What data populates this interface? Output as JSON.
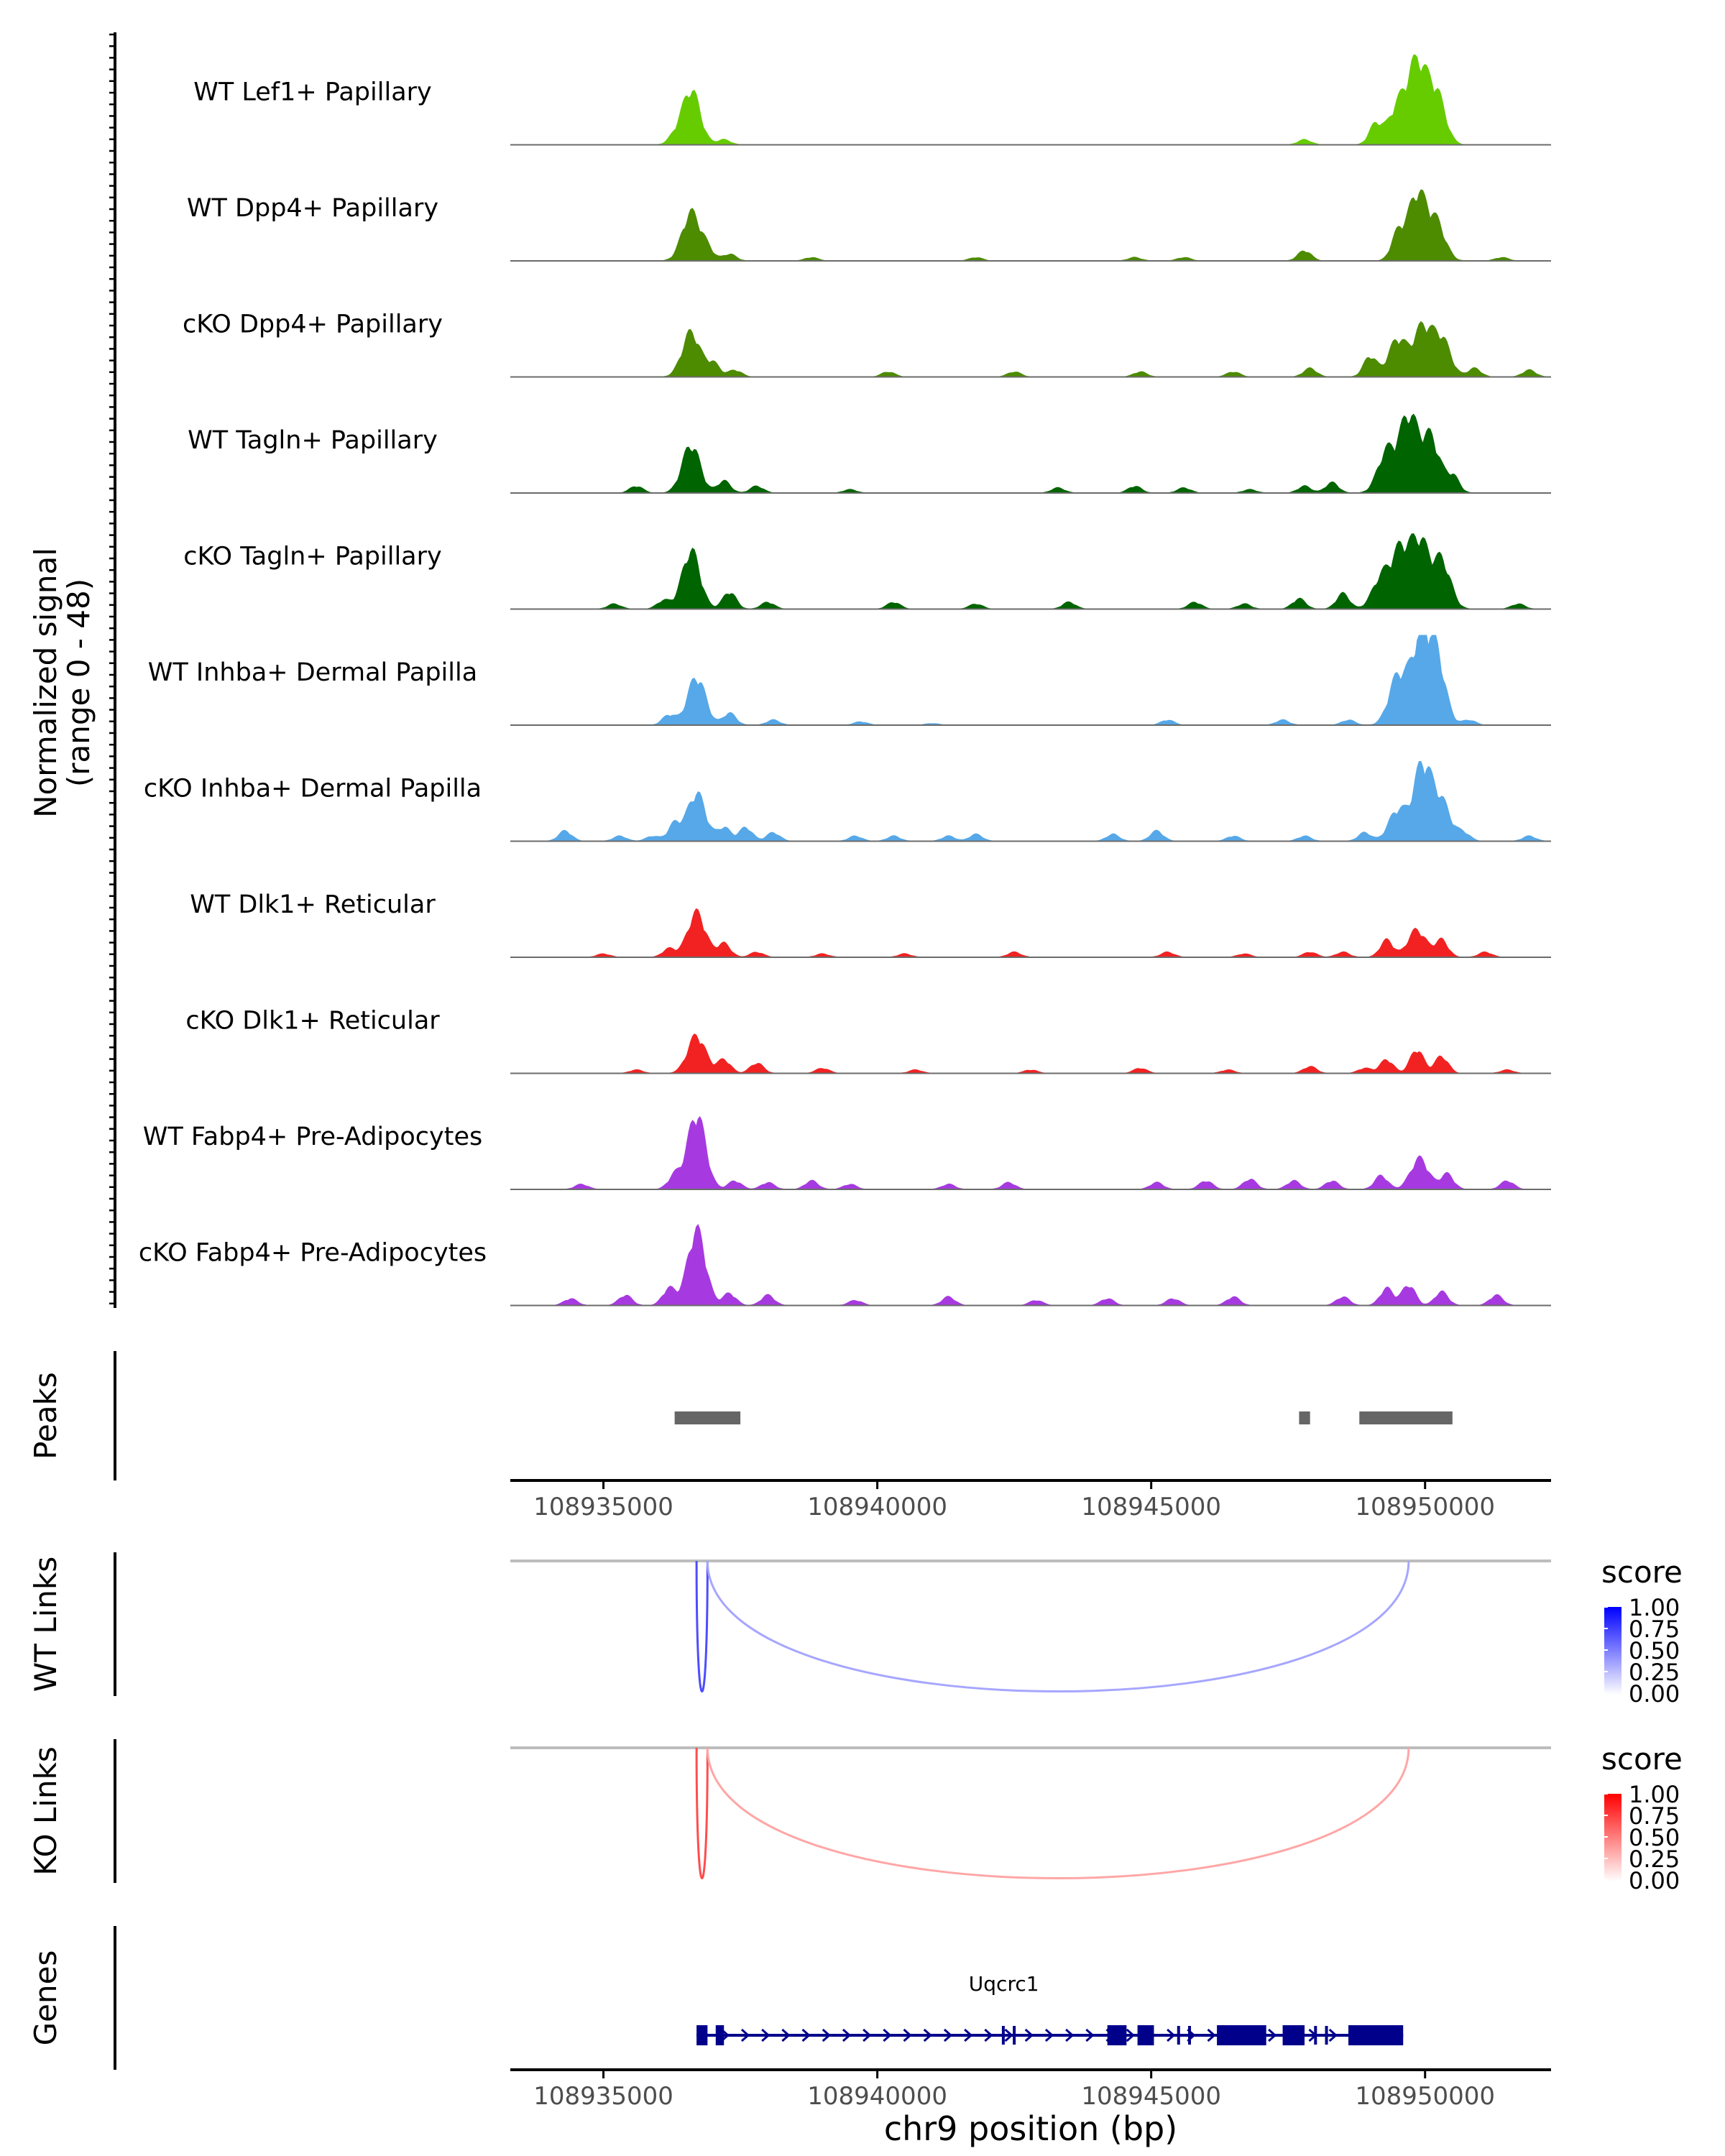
{
  "chart_data": {
    "type": "area",
    "region": {
      "chromosome": "chr9",
      "start": 108933300,
      "end": 108952300
    },
    "xlabel": "chr9 position (bp)",
    "x_ticks": [
      108935000,
      108940000,
      108945000,
      108950000
    ],
    "x_tick_labels": [
      "108935000",
      "108940000",
      "108945000",
      "108950000"
    ],
    "coverage": {
      "ylabel_line1": "Normalized signal",
      "ylabel_line2": "(range 0 - 48)",
      "ylim": [
        0,
        48
      ],
      "tracks": [
        {
          "name": "WT Lef1+ Papillary",
          "color": "#66CC00",
          "peaks": [
            [
              108936600,
              32
            ],
            [
              108936300,
              4
            ],
            [
              108937200,
              3
            ],
            [
              108947800,
              3
            ],
            [
              108949500,
              22
            ],
            [
              108949850,
              46
            ],
            [
              108950200,
              30
            ],
            [
              108949100,
              12
            ]
          ]
        },
        {
          "name": "WT Dpp4+ Papillary",
          "color": "#4D8B00",
          "peaks": [
            [
              108936600,
              28
            ],
            [
              108936900,
              6
            ],
            [
              108937300,
              4
            ],
            [
              108938800,
              2
            ],
            [
              108941800,
              2
            ],
            [
              108944700,
              2
            ],
            [
              108945600,
              2
            ],
            [
              108947800,
              6
            ],
            [
              108949500,
              15
            ],
            [
              108949850,
              38
            ],
            [
              108950200,
              22
            ],
            [
              108951400,
              2
            ]
          ]
        },
        {
          "name": "cKO Dpp4+ Papillary",
          "color": "#4D8B00",
          "peaks": [
            [
              108936600,
              26
            ],
            [
              108937000,
              8
            ],
            [
              108937400,
              4
            ],
            [
              108940200,
              3
            ],
            [
              108942500,
              3
            ],
            [
              108944800,
              3
            ],
            [
              108946500,
              3
            ],
            [
              108947900,
              5
            ],
            [
              108949000,
              12
            ],
            [
              108949500,
              22
            ],
            [
              108949950,
              28
            ],
            [
              108950300,
              22
            ],
            [
              108950900,
              5
            ],
            [
              108951900,
              4
            ]
          ]
        },
        {
          "name": "WT Tagln+ Papillary",
          "color": "#006400",
          "peaks": [
            [
              108935600,
              4
            ],
            [
              108936600,
              28
            ],
            [
              108937200,
              7
            ],
            [
              108937800,
              4
            ],
            [
              108939500,
              2
            ],
            [
              108943300,
              3
            ],
            [
              108944700,
              4
            ],
            [
              108945600,
              3
            ],
            [
              108946800,
              2
            ],
            [
              108947800,
              4
            ],
            [
              108948300,
              6
            ],
            [
              108949300,
              24
            ],
            [
              108949700,
              44
            ],
            [
              108950100,
              32
            ],
            [
              108950500,
              10
            ]
          ]
        },
        {
          "name": "cKO Tagln+ Papillary",
          "color": "#006400",
          "peaks": [
            [
              108935200,
              3
            ],
            [
              108936100,
              5
            ],
            [
              108936600,
              34
            ],
            [
              108937300,
              10
            ],
            [
              108938000,
              4
            ],
            [
              108940300,
              4
            ],
            [
              108941800,
              3
            ],
            [
              108943500,
              4
            ],
            [
              108945800,
              4
            ],
            [
              108946700,
              3
            ],
            [
              108947700,
              6
            ],
            [
              108948500,
              9
            ],
            [
              108949200,
              18
            ],
            [
              108949550,
              32
            ],
            [
              108949900,
              38
            ],
            [
              108950300,
              28
            ],
            [
              108951700,
              3
            ]
          ]
        },
        {
          "name": "WT Inhba+ Dermal Papilla",
          "color": "#56A8E8",
          "peaks": [
            [
              108936200,
              6
            ],
            [
              108936700,
              28
            ],
            [
              108937300,
              7
            ],
            [
              108938100,
              3
            ],
            [
              108939700,
              2
            ],
            [
              108941000,
              1
            ],
            [
              108945300,
              3
            ],
            [
              108947400,
              3
            ],
            [
              108948600,
              3
            ],
            [
              108949500,
              28
            ],
            [
              108949900,
              46
            ],
            [
              108950200,
              40
            ],
            [
              108950800,
              3
            ]
          ]
        },
        {
          "name": "cKO Inhba+ Dermal Papilla",
          "color": "#56A8E8",
          "peaks": [
            [
              108934300,
              6
            ],
            [
              108935300,
              3
            ],
            [
              108935900,
              3
            ],
            [
              108936300,
              10
            ],
            [
              108936700,
              28
            ],
            [
              108937200,
              8
            ],
            [
              108937600,
              8
            ],
            [
              108938100,
              5
            ],
            [
              108939600,
              3
            ],
            [
              108940300,
              3
            ],
            [
              108941300,
              3
            ],
            [
              108941800,
              4
            ],
            [
              108944300,
              4
            ],
            [
              108945100,
              6
            ],
            [
              108946500,
              3
            ],
            [
              108947800,
              3
            ],
            [
              108948900,
              5
            ],
            [
              108949500,
              18
            ],
            [
              108949950,
              44
            ],
            [
              108950300,
              22
            ],
            [
              108950700,
              5
            ],
            [
              108951900,
              3
            ]
          ]
        },
        {
          "name": "WT Dlk1+ Reticular",
          "color": "#F22222",
          "peaks": [
            [
              108935000,
              2
            ],
            [
              108936200,
              5
            ],
            [
              108936700,
              26
            ],
            [
              108937200,
              8
            ],
            [
              108937800,
              3
            ],
            [
              108939000,
              2
            ],
            [
              108940500,
              2
            ],
            [
              108942500,
              3
            ],
            [
              108945300,
              3
            ],
            [
              108946700,
              2
            ],
            [
              108947900,
              3
            ],
            [
              108948500,
              3
            ],
            [
              108949300,
              10
            ],
            [
              108949850,
              16
            ],
            [
              108950300,
              10
            ],
            [
              108951100,
              3
            ]
          ]
        },
        {
          "name": "cKO Dlk1+ Reticular",
          "color": "#F22222",
          "peaks": [
            [
              108935600,
              2
            ],
            [
              108936700,
              22
            ],
            [
              108937200,
              8
            ],
            [
              108937800,
              6
            ],
            [
              108939000,
              3
            ],
            [
              108940700,
              2
            ],
            [
              108942800,
              2
            ],
            [
              108944800,
              3
            ],
            [
              108946400,
              2
            ],
            [
              108947900,
              4
            ],
            [
              108948900,
              3
            ],
            [
              108949300,
              8
            ],
            [
              108949850,
              14
            ],
            [
              108950300,
              10
            ],
            [
              108951500,
              2
            ]
          ]
        },
        {
          "name": "WT Fabp4+ Pre-Adipocytes",
          "color": "#A63AE0",
          "peaks": [
            [
              108934600,
              3
            ],
            [
              108936300,
              8
            ],
            [
              108936700,
              44
            ],
            [
              108937400,
              5
            ],
            [
              108938000,
              4
            ],
            [
              108938800,
              5
            ],
            [
              108939500,
              3
            ],
            [
              108941300,
              3
            ],
            [
              108942400,
              4
            ],
            [
              108945100,
              4
            ],
            [
              108946000,
              5
            ],
            [
              108946800,
              6
            ],
            [
              108947600,
              5
            ],
            [
              108948300,
              5
            ],
            [
              108949200,
              8
            ],
            [
              108949900,
              18
            ],
            [
              108950400,
              9
            ],
            [
              108951500,
              5
            ]
          ]
        },
        {
          "name": "cKO Fabp4+ Pre-Adipocytes",
          "color": "#A63AE0",
          "peaks": [
            [
              108934400,
              4
            ],
            [
              108935400,
              6
            ],
            [
              108936200,
              10
            ],
            [
              108936700,
              44
            ],
            [
              108937300,
              7
            ],
            [
              108938000,
              6
            ],
            [
              108939600,
              3
            ],
            [
              108941300,
              5
            ],
            [
              108942900,
              3
            ],
            [
              108944200,
              4
            ],
            [
              108945400,
              4
            ],
            [
              108946500,
              5
            ],
            [
              108948500,
              5
            ],
            [
              108949300,
              10
            ],
            [
              108949700,
              12
            ],
            [
              108950300,
              8
            ],
            [
              108951300,
              6
            ]
          ]
        }
      ]
    },
    "peaks_track": {
      "label": "Peaks",
      "color": "#666666",
      "regions": [
        [
          108936300,
          108937500
        ],
        [
          108947700,
          108947900
        ],
        [
          108948800,
          108950500
        ]
      ]
    },
    "links_tracks": [
      {
        "label": "WT Links",
        "legend_title": "score",
        "legend_ticks": [
          "1.00",
          "0.75",
          "0.50",
          "0.25",
          "0.00"
        ],
        "low_color": "#FFFFFF",
        "high_color": "#0000FF",
        "links": [
          {
            "start": 108936700,
            "end": 108936900,
            "score": 0.7
          },
          {
            "start": 108936900,
            "end": 108949700,
            "score": 0.35
          }
        ]
      },
      {
        "label": "KO Links",
        "legend_title": "score",
        "legend_ticks": [
          "1.00",
          "0.75",
          "0.50",
          "0.25",
          "0.00"
        ],
        "low_color": "#FFFFFF",
        "high_color": "#FF0000",
        "links": [
          {
            "start": 108936700,
            "end": 108936900,
            "score": 0.7
          },
          {
            "start": 108936900,
            "end": 108949700,
            "score": 0.35
          }
        ]
      }
    ],
    "genes_track": {
      "label": "Genes",
      "color": "#00008B",
      "gene": {
        "name": "Uqcrc1",
        "start": 108936700,
        "end": 108949600,
        "strand": "+",
        "exons": [
          [
            108936700,
            108936900
          ],
          [
            108937050,
            108937200
          ],
          [
            108944200,
            108944550
          ],
          [
            108944750,
            108945050
          ],
          [
            108946200,
            108947100
          ],
          [
            108947400,
            108947800
          ],
          [
            108948600,
            108949600
          ]
        ],
        "small_exons": [
          108942300,
          108942500,
          108945500,
          108945700,
          108948000,
          108948200
        ]
      }
    }
  }
}
